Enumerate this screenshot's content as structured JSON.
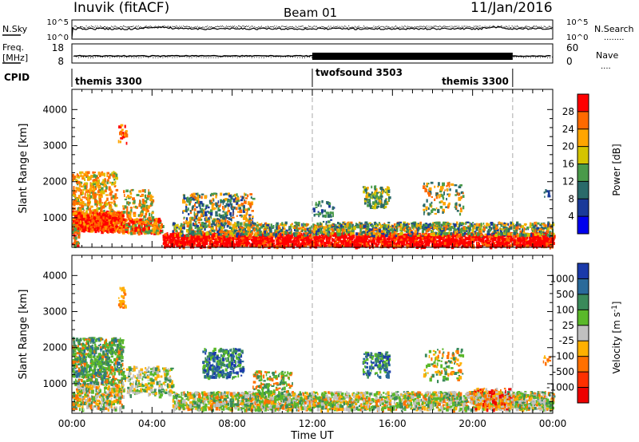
{
  "header": {
    "station": "Inuvik (fitACF)",
    "beam": "Beam 01",
    "date": "11/Jan/2016"
  },
  "noise": {
    "left_label": "N.Sky",
    "right_label": "N.Search",
    "left_ticks": [
      "10^5",
      "10^0"
    ],
    "right_ticks": [
      "10^5",
      "10^0"
    ],
    "right_marker": "........"
  },
  "freq": {
    "left_label_1": "Freq.",
    "left_label_2": "[MHz]",
    "right_label": "Nave",
    "left_ticks": [
      "18",
      "8"
    ],
    "right_ticks": [
      "60",
      "0"
    ],
    "right_marker": "...."
  },
  "cpid": {
    "label": "CPID",
    "segments": [
      {
        "name": "themis 3300",
        "start_hour": 0,
        "end_hour": 12
      },
      {
        "name": "twofsound 3503",
        "start_hour": 12,
        "end_hour": 22
      },
      {
        "name": "themis 3300",
        "start_hour": 22,
        "end_hour": 24
      }
    ]
  },
  "xaxis": {
    "label": "Time UT",
    "ticks": [
      "00:00",
      "04:00",
      "08:00",
      "12:00",
      "16:00",
      "20:00",
      "00:00"
    ]
  },
  "colors": {
    "scatter_min_color": "#0000ee",
    "grid_line": "#bbbbbb"
  },
  "chart_data": [
    {
      "type": "heatmap",
      "title": "Power",
      "ylabel": "Slant Range [km]",
      "xlabel": "Time UT",
      "xlim": [
        0,
        24
      ],
      "ylim": [
        180,
        4560
      ],
      "yticks": [
        "1000",
        "2000",
        "3000",
        "4000"
      ],
      "colorbar": {
        "label": "Power [dB]",
        "ticks": [
          "28",
          "24",
          "20",
          "16",
          "12",
          "8",
          "4"
        ],
        "colors": [
          "#ff0000",
          "#ff6a00",
          "#ffa500",
          "#d4c400",
          "#4a9a4a",
          "#2a6a6a",
          "#1a3a9a",
          "#0000ee"
        ]
      },
      "approx_regions": [
        {
          "hours": [
            0,
            2.5
          ],
          "range_km": [
            600,
            1200
          ],
          "value_db": 28
        },
        {
          "hours": [
            0,
            2.5
          ],
          "range_km": [
            1200,
            2300
          ],
          "value_db": 18
        },
        {
          "hours": [
            4.5,
            24
          ],
          "range_km": [
            250,
            600
          ],
          "value_db": 28
        },
        {
          "hours": [
            5,
            24
          ],
          "range_km": [
            600,
            900
          ],
          "value_db": 14
        },
        {
          "hours": [
            14.5,
            15.8
          ],
          "range_km": [
            1400,
            1900
          ],
          "value_db": 12
        },
        {
          "hours": [
            17.5,
            19.5
          ],
          "range_km": [
            1200,
            2000
          ],
          "value_db": 16
        }
      ]
    },
    {
      "type": "heatmap",
      "title": "Velocity",
      "ylabel": "Slant Range [km]",
      "xlabel": "Time UT",
      "xlim": [
        0,
        24
      ],
      "ylim": [
        180,
        4560
      ],
      "yticks": [
        "1000",
        "2000",
        "3000",
        "4000"
      ],
      "colorbar": {
        "label": "Velocity [m s^-1]",
        "ticks": [
          "1000",
          "500",
          "100",
          "25",
          "-25",
          "-100",
          "-500",
          "-1000"
        ],
        "colors": [
          "#1a3aaa",
          "#2a6a9a",
          "#3a8a5a",
          "#5ab82a",
          "#c0c0c0",
          "#ffb000",
          "#ff7000",
          "#ff3000",
          "#ee0000"
        ]
      },
      "approx_regions": [
        {
          "hours": [
            0,
            2.5
          ],
          "range_km": [
            1000,
            2300
          ],
          "value_ms": 100
        },
        {
          "hours": [
            5,
            24
          ],
          "range_km": [
            300,
            800
          ],
          "value_ms": 25
        },
        {
          "hours": [
            6.5,
            8.5
          ],
          "range_km": [
            1200,
            2000
          ],
          "value_ms": 500
        },
        {
          "hours": [
            14.8,
            15.4
          ],
          "range_km": [
            1200,
            1600
          ],
          "value_ms": 1000
        }
      ]
    }
  ]
}
